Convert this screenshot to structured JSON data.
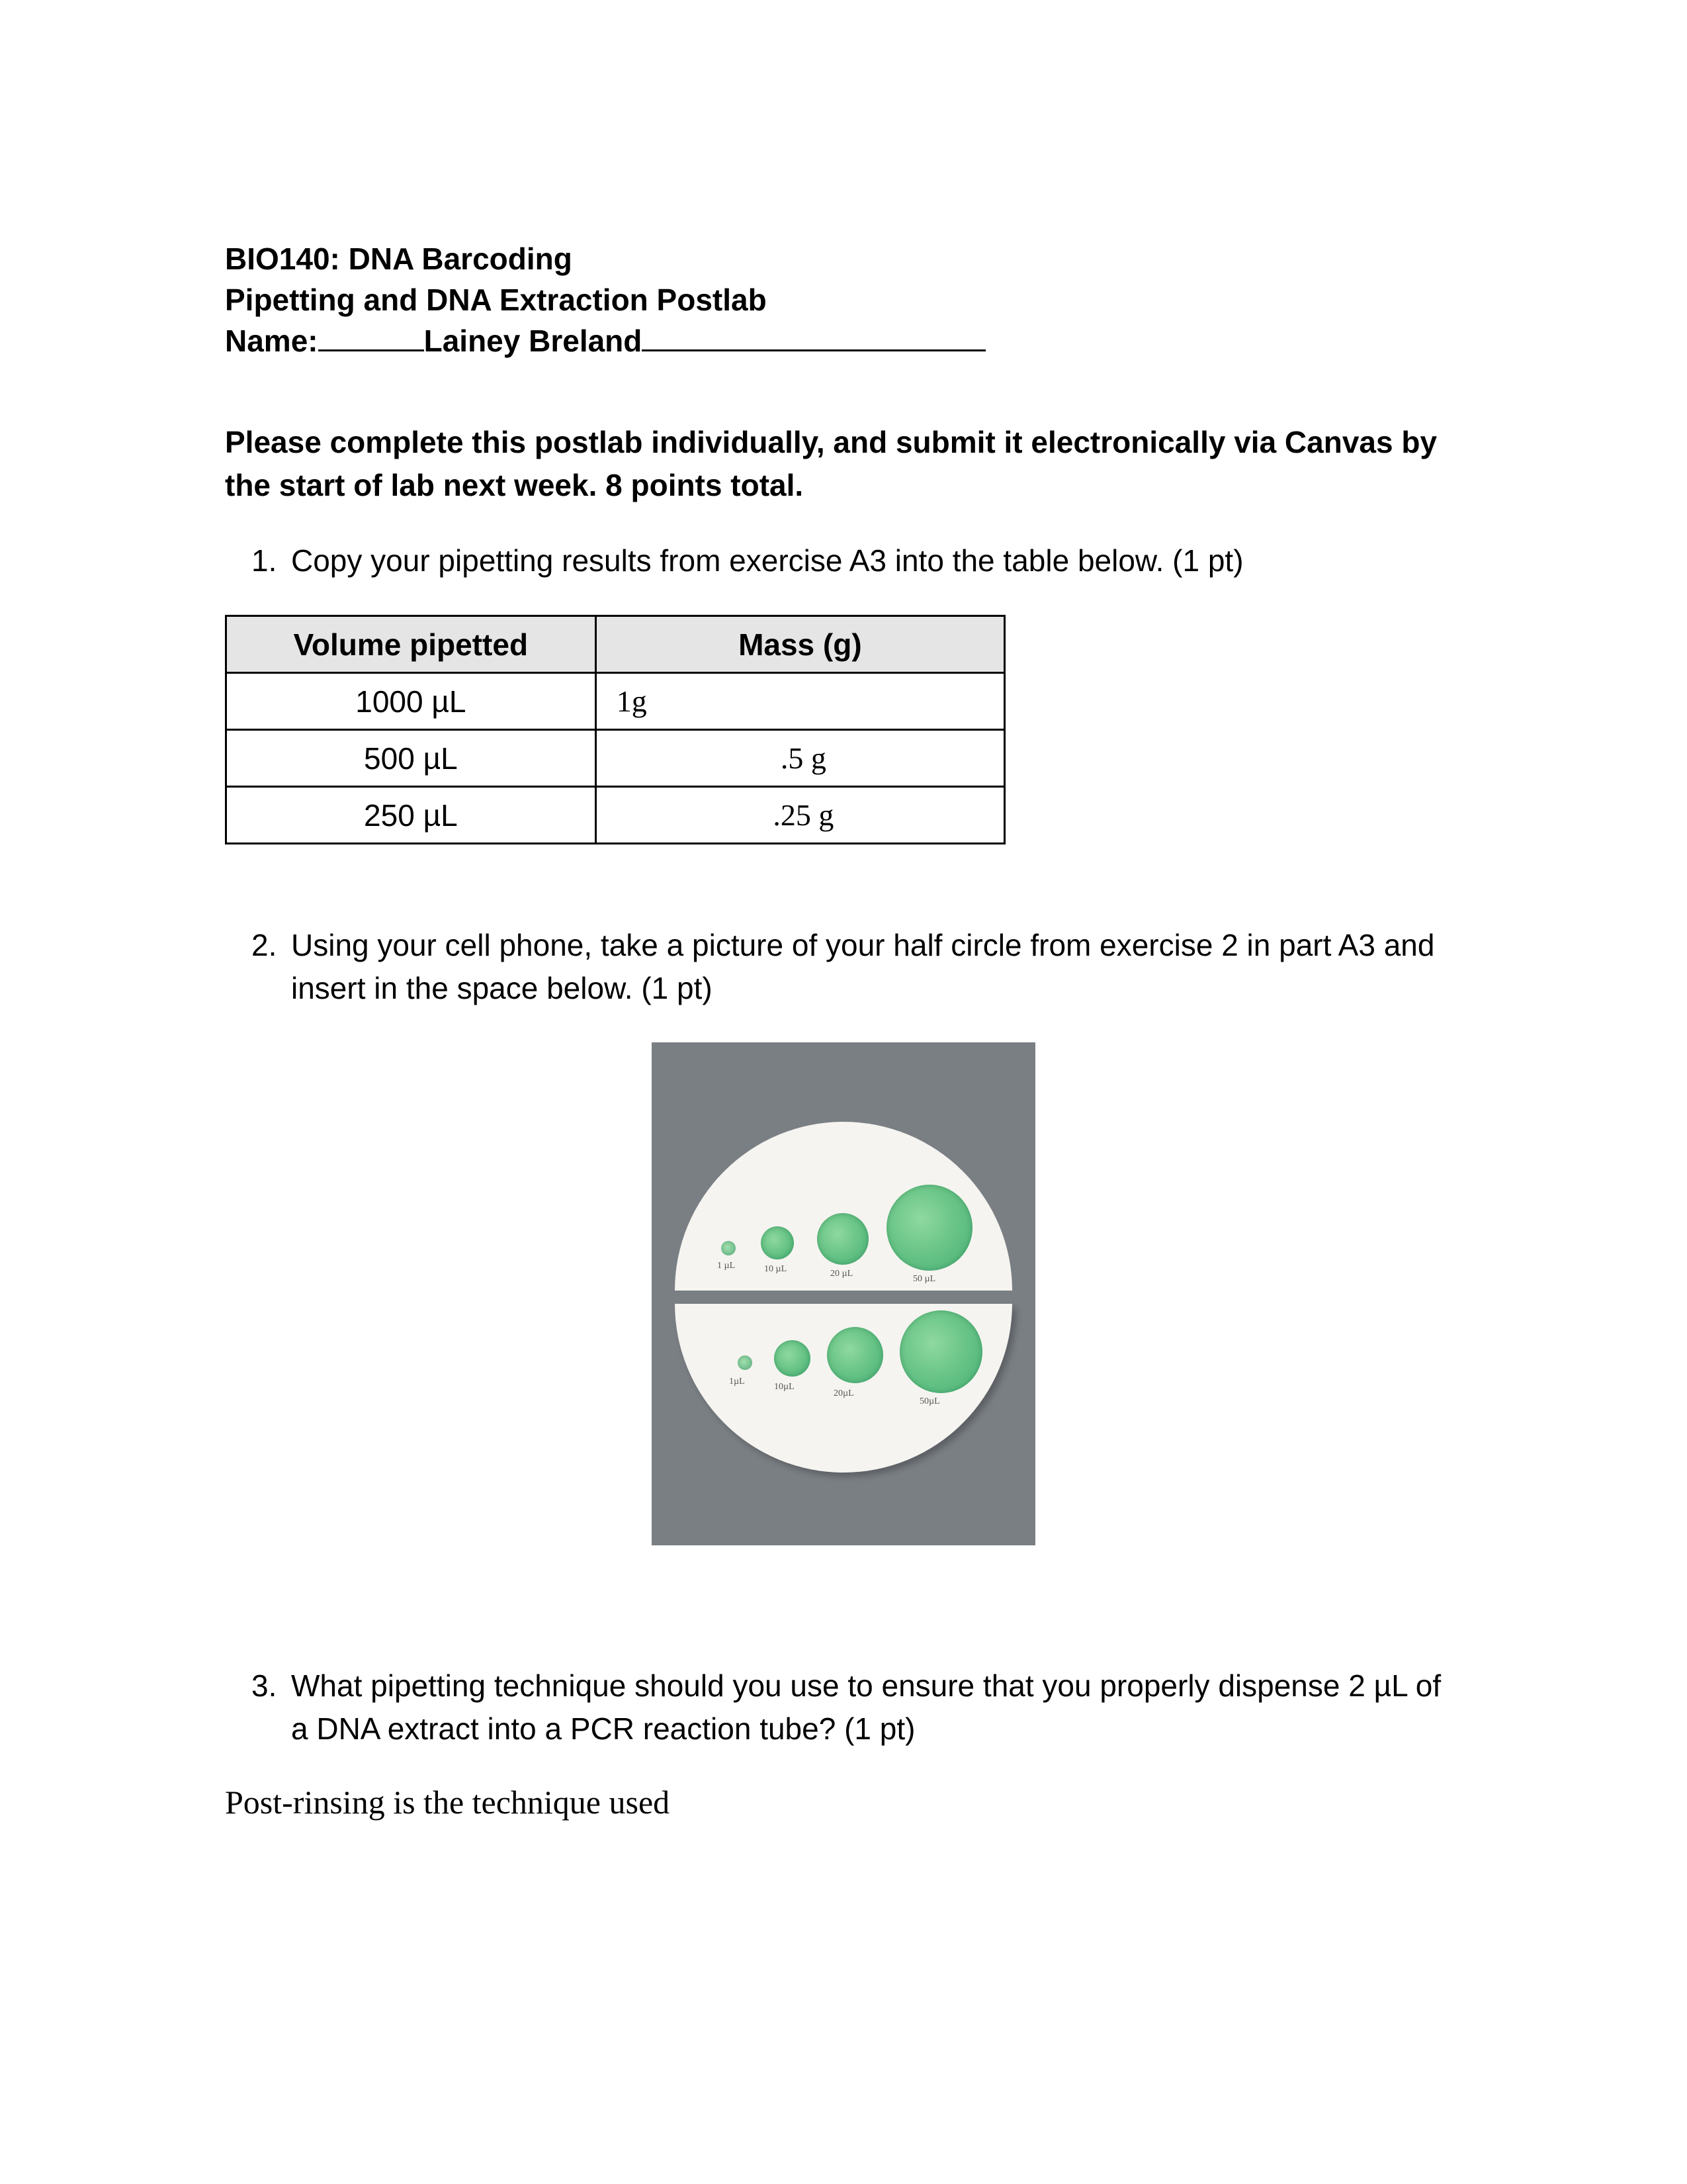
{
  "header": {
    "course": "BIO140: DNA Barcoding",
    "lab_title": "Pipetting and DNA Extraction Postlab",
    "name_label": "Name:",
    "student_name": "Lainey Breland"
  },
  "instructions": "Please complete this postlab individually, and submit it electronically via Canvas by the start of lab next week. 8 points total.",
  "q1": {
    "number": "1.",
    "text": "Copy your pipetting results from exercise A3 into the table below. (1 pt)"
  },
  "table": {
    "headers": {
      "vol": "Volume pipetted",
      "mass": "Mass (g)"
    },
    "rows": [
      {
        "vol": "1000 µL",
        "mass": "1g",
        "align": "left"
      },
      {
        "vol": "500 µL",
        "mass": ".5 g",
        "align": "center"
      },
      {
        "vol": "250 µL",
        "mass": ".25 g",
        "align": "center"
      }
    ]
  },
  "q2": {
    "number": "2.",
    "text": "Using your cell phone, take a picture of your half circle from exercise 2 in part A3 and insert in the space below. (1 pt)"
  },
  "photo": {
    "background_color": "#7a7f84",
    "paper_color": "#f5f4f0",
    "dot_color": "#6bc588",
    "top_labels": [
      "1 µL",
      "10 µL",
      "20 µL",
      "50 µL"
    ],
    "bottom_labels": [
      "1µL",
      "10µL",
      "20µL",
      "50µL"
    ]
  },
  "q3": {
    "number": "3.",
    "text": "What pipetting technique should you use to ensure that you properly dispense 2 µL of a DNA extract into a PCR reaction tube? (1 pt)"
  },
  "answer3": "Post-rinsing is the technique used"
}
